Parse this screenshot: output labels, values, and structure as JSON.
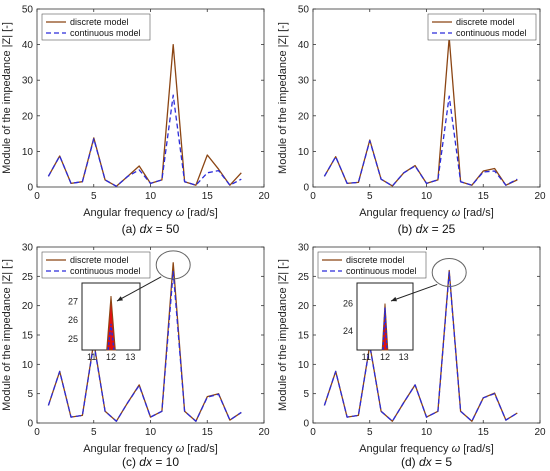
{
  "colors": {
    "discrete": "#8B4513",
    "continuous": "#2B2BD9",
    "inset_peak": "#E11010"
  },
  "shared": {
    "xlabel_prefix": "Angular frequency ",
    "xlabel_symbol": "ω",
    "xlabel_suffix": " [rad/s]",
    "ylabel": "Module of the impedance |Z| [-]",
    "legend": {
      "discrete": "discrete model",
      "continuous": "continuous model"
    }
  },
  "chart_data": [
    {
      "type": "line",
      "caption_prefix": "(a) ",
      "caption_var": "dx",
      "caption_suffix": " = 50",
      "xlim": [
        0,
        20
      ],
      "ylim": [
        0,
        50
      ],
      "xticks": [
        0,
        5,
        10,
        15,
        20
      ],
      "yticks": [
        0,
        10,
        20,
        30,
        40,
        50
      ],
      "legend_position": "top-left",
      "x": [
        1,
        2,
        3,
        4,
        5,
        6,
        7,
        8,
        9,
        10,
        11,
        12,
        13,
        14,
        15,
        16,
        17,
        18
      ],
      "series": [
        {
          "name": "discrete model",
          "values": [
            3,
            8.7,
            1,
            1.5,
            13.8,
            2,
            0.2,
            3,
            5.9,
            1,
            2,
            40,
            1.5,
            0.5,
            9,
            5,
            0.5,
            4
          ]
        },
        {
          "name": "continuous model",
          "values": [
            3,
            8.7,
            1,
            1.5,
            13.5,
            2,
            0.2,
            3,
            4.8,
            1,
            2,
            25.8,
            1.5,
            0.5,
            4,
            4.6,
            0.5,
            2.2
          ]
        }
      ]
    },
    {
      "type": "line",
      "caption_prefix": "(b) ",
      "caption_var": "dx",
      "caption_suffix": " = 25",
      "xlim": [
        0,
        20
      ],
      "ylim": [
        0,
        50
      ],
      "xticks": [
        0,
        5,
        10,
        15,
        20
      ],
      "yticks": [
        0,
        10,
        20,
        30,
        40,
        50
      ],
      "legend_position": "top-right",
      "x": [
        1,
        2,
        3,
        4,
        5,
        6,
        7,
        8,
        9,
        10,
        11,
        12,
        13,
        14,
        15,
        16,
        17,
        18
      ],
      "series": [
        {
          "name": "discrete model",
          "values": [
            3,
            8.5,
            1,
            1.3,
            13.2,
            2.2,
            0.3,
            4,
            6,
            1,
            2,
            42,
            1.5,
            0.5,
            4.5,
            5.2,
            0.5,
            2
          ]
        },
        {
          "name": "continuous model",
          "values": [
            3,
            8.5,
            1,
            1.3,
            13,
            2.2,
            0.3,
            4,
            5.9,
            1,
            2,
            25.5,
            1.5,
            0.5,
            4.2,
            4.5,
            0.5,
            2.2
          ]
        }
      ]
    },
    {
      "type": "line",
      "caption_prefix": "(c) ",
      "caption_var": "dx",
      "caption_suffix": " = 10",
      "xlim": [
        0,
        20
      ],
      "ylim": [
        0,
        30
      ],
      "xticks": [
        0,
        5,
        10,
        15,
        20
      ],
      "yticks": [
        0,
        5,
        10,
        15,
        20,
        25,
        30
      ],
      "legend_position": "top-left",
      "x": [
        1,
        2,
        3,
        4,
        5,
        6,
        7,
        8,
        9,
        10,
        11,
        12,
        13,
        14,
        15,
        16,
        17,
        18
      ],
      "series": [
        {
          "name": "discrete model",
          "values": [
            3,
            8.8,
            1,
            1.3,
            13.8,
            2,
            0.3,
            3.5,
            6.5,
            1,
            2,
            27.3,
            2,
            0.3,
            4.5,
            5,
            0.5,
            1.8
          ]
        },
        {
          "name": "continuous model",
          "values": [
            3,
            8.8,
            1,
            1.3,
            13.6,
            2,
            0.3,
            3.5,
            6.4,
            1,
            2,
            25.8,
            2,
            0.3,
            4.4,
            4.9,
            0.5,
            1.8
          ]
        }
      ],
      "inset": {
        "xticks": [
          11,
          12,
          13
        ],
        "yticks": [
          25,
          26,
          27
        ],
        "xlim": [
          10.5,
          13.5
        ],
        "ylim": [
          24.4,
          28
        ],
        "series": [
          {
            "name": "discrete model",
            "x": [
              11.78,
              12,
              12.22
            ],
            "values": [
              24.4,
              27.3,
              24.4
            ]
          },
          {
            "name": "continuous model",
            "x": [
              11.85,
              12,
              12.15
            ],
            "values": [
              24.4,
              25.8,
              24.4
            ]
          }
        ]
      }
    },
    {
      "type": "line",
      "caption_prefix": "(d) ",
      "caption_var": "dx",
      "caption_suffix": " = 5",
      "xlim": [
        0,
        20
      ],
      "ylim": [
        0,
        30
      ],
      "xticks": [
        0,
        5,
        10,
        15,
        20
      ],
      "yticks": [
        0,
        5,
        10,
        15,
        20,
        25,
        30
      ],
      "legend_position": "top-left",
      "x": [
        1,
        2,
        3,
        4,
        5,
        6,
        7,
        8,
        9,
        10,
        11,
        12,
        13,
        14,
        15,
        16,
        17,
        18
      ],
      "series": [
        {
          "name": "discrete model",
          "values": [
            3,
            8.8,
            1,
            1.3,
            13.3,
            2,
            0.3,
            3.5,
            6.5,
            1,
            2,
            26,
            2,
            0.3,
            4.3,
            5.1,
            0.5,
            1.7
          ]
        },
        {
          "name": "continuous model",
          "values": [
            3,
            8.8,
            1,
            1.3,
            13.2,
            2,
            0.3,
            3.5,
            6.5,
            1,
            2,
            25.7,
            2,
            0.3,
            4.3,
            5,
            0.5,
            1.7
          ]
        }
      ],
      "inset": {
        "xticks": [
          11,
          12,
          13
        ],
        "yticks": [
          24,
          26
        ],
        "xlim": [
          10.5,
          13.5
        ],
        "ylim": [
          22.6,
          27.5
        ],
        "series": [
          {
            "name": "discrete model",
            "x": [
              11.85,
              12,
              12.15
            ],
            "values": [
              22.6,
              26,
              22.6
            ]
          },
          {
            "name": "continuous model",
            "x": [
              11.9,
              12,
              12.1
            ],
            "values": [
              22.6,
              25.7,
              22.6
            ]
          }
        ]
      }
    }
  ]
}
